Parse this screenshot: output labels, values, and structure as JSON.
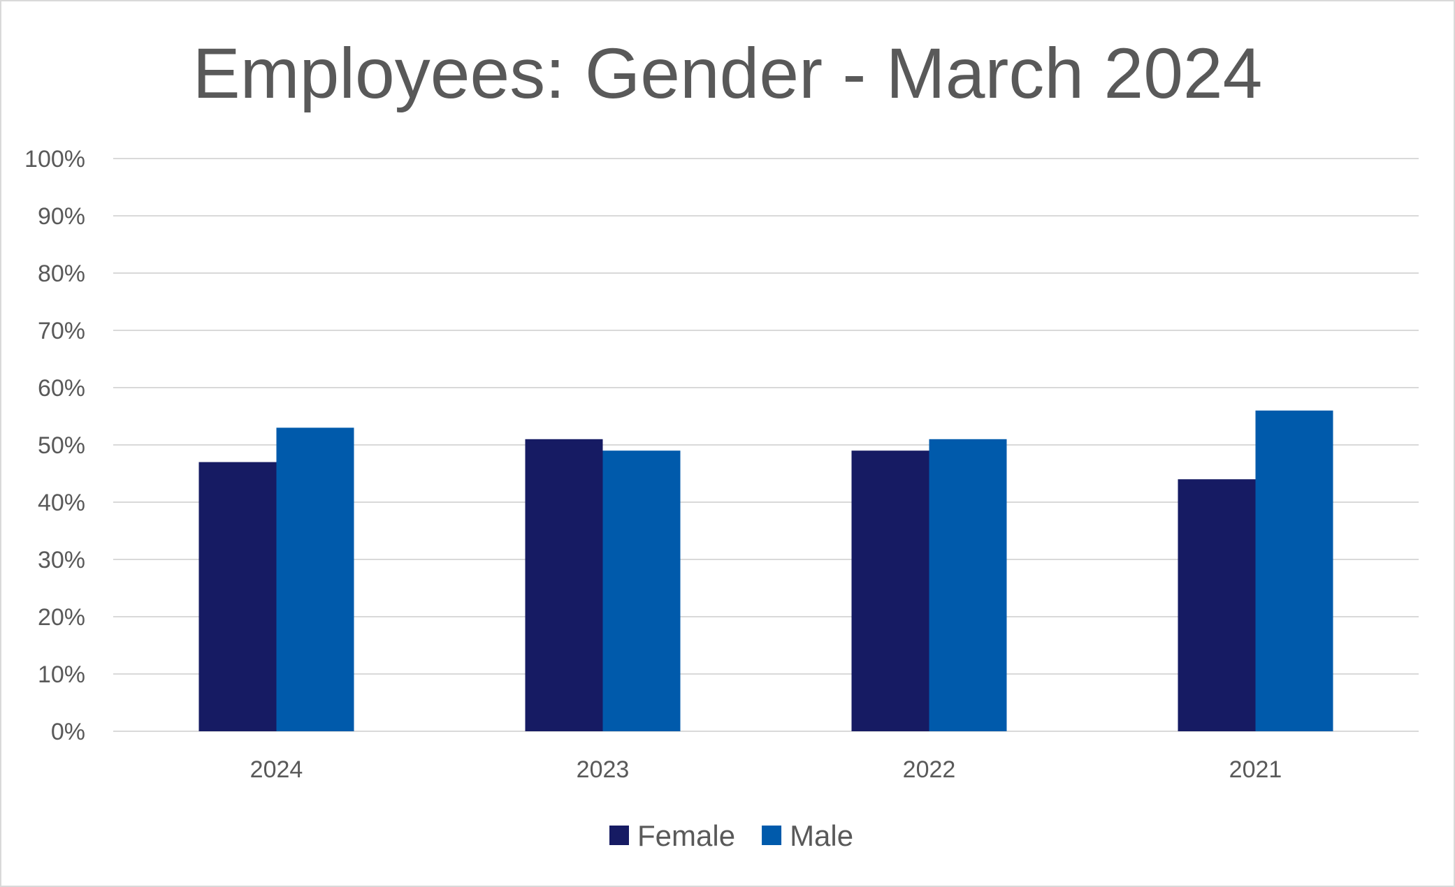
{
  "chart_data": {
    "type": "bar",
    "title": "Employees: Gender - March 2024",
    "categories": [
      "2024",
      "2023",
      "2022",
      "2021"
    ],
    "series": [
      {
        "name": "Female",
        "color": "#161b63",
        "values": [
          47,
          51,
          49,
          44
        ]
      },
      {
        "name": "Male",
        "color": "#005aab",
        "values": [
          53,
          49,
          51,
          56
        ]
      }
    ],
    "xlabel": "",
    "ylabel": "",
    "ylim": [
      0,
      100
    ],
    "yticks": [
      "0%",
      "10%",
      "20%",
      "30%",
      "40%",
      "50%",
      "60%",
      "70%",
      "80%",
      "90%",
      "100%"
    ],
    "grid": true,
    "legend_position": "bottom-center",
    "gridline_color": "#d9d9d9"
  }
}
